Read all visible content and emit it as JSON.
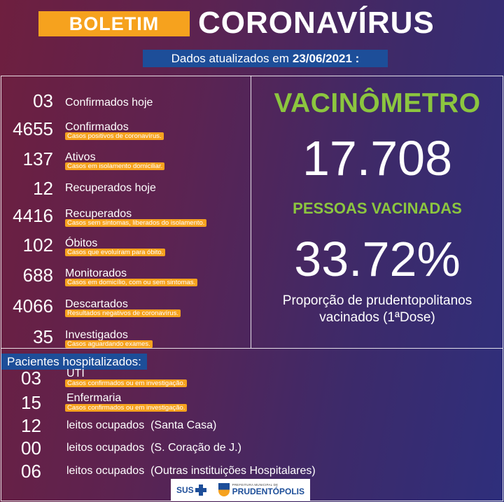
{
  "header": {
    "badge": "BOLETIM",
    "title": "CORONAVÍRUS",
    "update_prefix": "Dados atualizados em",
    "update_date": "23/06/2021 :"
  },
  "stats": [
    {
      "num": "03",
      "label": "Confirmados hoje",
      "sub": ""
    },
    {
      "num": "4655",
      "label": "Confirmados",
      "sub": "Casos positivos de coronavírus."
    },
    {
      "num": "137",
      "label": "Ativos",
      "sub": "Casos em isolamento domiciliar."
    },
    {
      "num": "12",
      "label": "Recuperados hoje",
      "sub": ""
    },
    {
      "num": "4416",
      "label": "Recuperados",
      "sub": "Casos sem sintomas, liberados do isolamento."
    },
    {
      "num": "102",
      "label": "Óbitos",
      "sub": "Casos que evoluíram para óbito."
    },
    {
      "num": "688",
      "label": "Monitorados",
      "sub": "Casos em domicílio, com ou sem sintomas."
    },
    {
      "num": "4066",
      "label": "Descartados",
      "sub": "Resultados negativos de coronavírus."
    },
    {
      "num": "35",
      "label": "Investigados",
      "sub": "Casos aguardando exames."
    }
  ],
  "vaccine": {
    "title": "VACINÔMETRO",
    "count": "17.708",
    "people_label": "PESSOAS VACINADAS",
    "percent": "33.72%",
    "description_line1": "Proporção de prudentopolitanos",
    "description_line2": "vacinados (1ªDose)"
  },
  "hospital": {
    "title": "Pacientes hospitalizados:",
    "rows": [
      {
        "num": "03",
        "label": "UTI",
        "sub": "Casos confirmados ou em investigação."
      },
      {
        "num": "15",
        "label": "Enfermaria",
        "sub": "Casos confirmados ou em investigação."
      },
      {
        "num": "12",
        "label": "leitos ocupados  (Santa Casa)",
        "sub": ""
      },
      {
        "num": "00",
        "label": "leitos ocupados  (S. Coração de J.)",
        "sub": ""
      },
      {
        "num": "06",
        "label": "leitos ocupados  (Outras instituições Hospitalares)",
        "sub": ""
      }
    ]
  },
  "footer": {
    "sus_label": "SUS",
    "pref_small": "PREFEITURA MUNICIPAL DE",
    "pref_name": "PRUDENTÓPOLIS",
    "sus_icon": "sus-cross-icon",
    "crest_icon": "municipal-crest-icon"
  }
}
